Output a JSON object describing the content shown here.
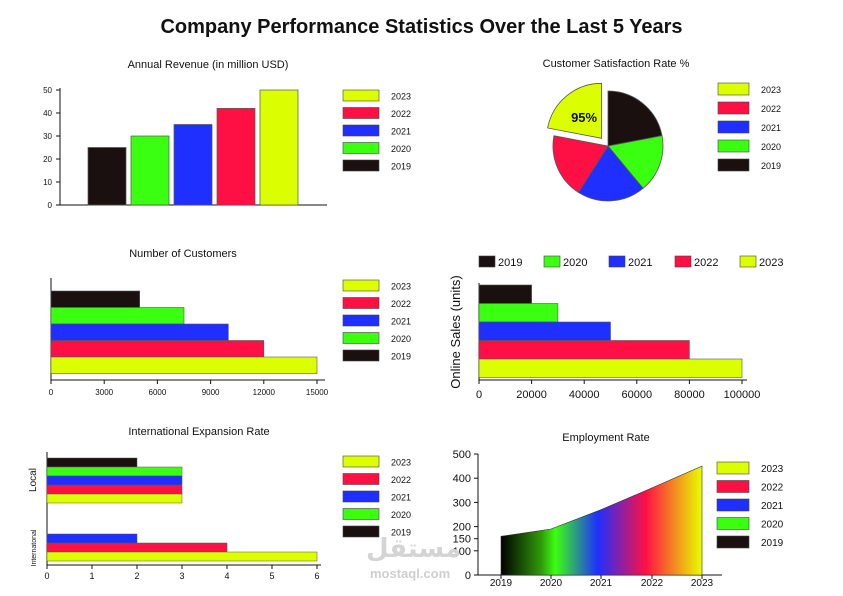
{
  "title": "Company Performance Statistics Over the Last 5 Years",
  "colors": {
    "2023": "#dcff00",
    "2022": "#ff1044",
    "2021": "#1f2fff",
    "2020": "#3bff10",
    "2019": "#1a1010"
  },
  "watermark": {
    "arabic": "مستقل",
    "latin": "mostaql.com"
  },
  "chart_data": [
    {
      "id": "revenue",
      "type": "bar",
      "title": "Annual Revenue (in million USD)",
      "categories": [
        "2019",
        "2020",
        "2021",
        "2022",
        "2023"
      ],
      "values": [
        25,
        30,
        35,
        42,
        50
      ],
      "ylim": [
        0,
        50
      ],
      "yticks": [
        "0",
        "10",
        "20",
        "30",
        "40",
        "50"
      ],
      "legend": [
        "2023",
        "2022",
        "2021",
        "2020",
        "2019"
      ]
    },
    {
      "id": "satisfaction",
      "type": "pie",
      "title": "Customer Satisfaction Rate %",
      "slices": [
        {
          "label": "2019",
          "value": 22
        },
        {
          "label": "2020",
          "value": 17
        },
        {
          "label": "2021",
          "value": 20
        },
        {
          "label": "2022",
          "value": 19
        },
        {
          "label": "2023",
          "value": 22
        }
      ],
      "exploded": "2023",
      "annotation": "95%",
      "legend": [
        "2023",
        "2022",
        "2021",
        "2020",
        "2019"
      ]
    },
    {
      "id": "customers",
      "type": "bar",
      "orientation": "horizontal",
      "title": "Number of Customers",
      "categories": [
        "2019",
        "2020",
        "2021",
        "2022",
        "2023"
      ],
      "values": [
        5000,
        7500,
        10000,
        12000,
        15000
      ],
      "xlim": [
        0,
        15000
      ],
      "xticks": [
        "0",
        "3000",
        "6000",
        "9000",
        "12000",
        "15000"
      ],
      "legend": [
        "2023",
        "2022",
        "2021",
        "2020",
        "2019"
      ]
    },
    {
      "id": "online",
      "type": "bar",
      "orientation": "horizontal",
      "title": "",
      "ylabel": "Online Sales (units)",
      "categories": [
        "2019",
        "2020",
        "2021",
        "2022",
        "2023"
      ],
      "values": [
        20000,
        30000,
        50000,
        80000,
        100000
      ],
      "xlim": [
        0,
        100000
      ],
      "xticks": [
        "0",
        "20000",
        "40000",
        "60000",
        "80000",
        "100000"
      ],
      "legend": [
        "2019",
        "2020",
        "2021",
        "2022",
        "2023"
      ],
      "legend_position": "top"
    },
    {
      "id": "expansion",
      "type": "bar",
      "orientation": "horizontal",
      "title": "International Expansion Rate",
      "groups": [
        {
          "name": "Local",
          "series": [
            {
              "year": "2019",
              "value": 2
            },
            {
              "year": "2020",
              "value": 3
            },
            {
              "year": "2021",
              "value": 3
            },
            {
              "year": "2022",
              "value": 3
            },
            {
              "year": "2023",
              "value": 3
            }
          ]
        },
        {
          "name": "Internatonal",
          "series": [
            {
              "year": "2021",
              "value": 2
            },
            {
              "year": "2022",
              "value": 4
            },
            {
              "year": "2023",
              "value": 6
            }
          ]
        }
      ],
      "xlim": [
        0,
        6
      ],
      "xticks": [
        "0",
        "1",
        "2",
        "3",
        "4",
        "5",
        "6"
      ],
      "legend": [
        "2023",
        "2022",
        "2021",
        "2020",
        "2019"
      ]
    },
    {
      "id": "employment",
      "type": "area",
      "title": "Employment Rate",
      "x": [
        "2019",
        "2020",
        "2021",
        "2022",
        "2023"
      ],
      "values": [
        160,
        190,
        270,
        360,
        450
      ],
      "ylim": [
        0,
        500
      ],
      "yticks": [
        "0",
        "100",
        "150",
        "200",
        "300",
        "400",
        "500"
      ],
      "xticks": [
        "2019",
        "2020",
        "2021",
        "2022",
        "2023"
      ],
      "legend": [
        "2023",
        "2022",
        "2021",
        "2020",
        "2019"
      ]
    }
  ]
}
